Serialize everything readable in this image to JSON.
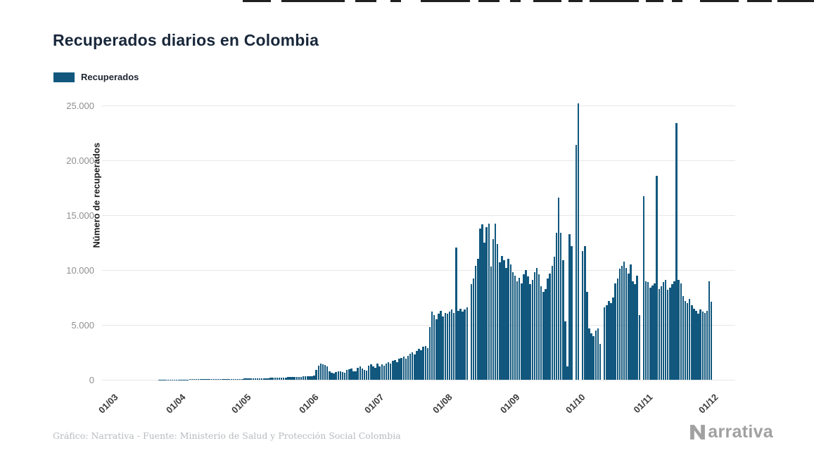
{
  "header": {
    "title": "Recuperados diarios en Colombia"
  },
  "legend": {
    "label": "Recuperados"
  },
  "axes": {
    "y_label": "Número de recuperados"
  },
  "footer": {
    "credit": "Gráfico: Narrativa - Fuente: Ministerio de Salud y Protección Social Colombia",
    "brand": "Narrativa",
    "brand_rest": "arrativa"
  },
  "colors": {
    "bar": "#12587e",
    "title": "#18273a",
    "grid": "#e7e7e7",
    "y_tick": "#8f8f8f",
    "x_tick": "#3a3a3a"
  },
  "chart_data": {
    "type": "bar",
    "title": "Recuperados diarios en Colombia",
    "series_name": "Recuperados",
    "xlabel": "",
    "ylabel": "Número de recuperados",
    "ylim": [
      0,
      25000
    ],
    "grid": true,
    "legend_position": "top-left",
    "y_ticks": [
      {
        "value": 0,
        "label": "0"
      },
      {
        "value": 5000,
        "label": "5.000"
      },
      {
        "value": 10000,
        "label": "10.000"
      },
      {
        "value": 15000,
        "label": "15.000"
      },
      {
        "value": 20000,
        "label": "20.000"
      },
      {
        "value": 25000,
        "label": "25.000"
      }
    ],
    "x_ticks": [
      {
        "day": 0,
        "label": "01/03"
      },
      {
        "day": 31,
        "label": "01/04"
      },
      {
        "day": 61,
        "label": "01/05"
      },
      {
        "day": 92,
        "label": "01/06"
      },
      {
        "day": 122,
        "label": "01/07"
      },
      {
        "day": 153,
        "label": "01/08"
      },
      {
        "day": 184,
        "label": "01/09"
      },
      {
        "day": 214,
        "label": "01/10"
      },
      {
        "day": 245,
        "label": "01/11"
      },
      {
        "day": 275,
        "label": "01/12"
      }
    ],
    "start_label": "01/03",
    "end_label": "01/12",
    "values": [
      0,
      0,
      0,
      0,
      0,
      0,
      0,
      0,
      0,
      0,
      0,
      0,
      0,
      0,
      1,
      1,
      2,
      3,
      3,
      4,
      5,
      6,
      8,
      8,
      10,
      12,
      14,
      16,
      18,
      20,
      22,
      25,
      28,
      30,
      32,
      35,
      38,
      40,
      42,
      45,
      48,
      50,
      52,
      55,
      58,
      60,
      62,
      65,
      68,
      70,
      72,
      75,
      78,
      80,
      82,
      85,
      88,
      90,
      92,
      95,
      98,
      100,
      105,
      110,
      118,
      125,
      130,
      140,
      150,
      145,
      155,
      160,
      170,
      180,
      175,
      190,
      200,
      210,
      205,
      220,
      230,
      240,
      250,
      245,
      260,
      270,
      280,
      290,
      300,
      310,
      320,
      330,
      400,
      900,
      1300,
      1450,
      1400,
      1350,
      1200,
      800,
      650,
      600,
      700,
      750,
      800,
      700,
      650,
      900,
      950,
      1000,
      800,
      750,
      1100,
      1200,
      1000,
      900,
      850,
      1300,
      1400,
      1200,
      1100,
      1500,
      1200,
      1400,
      1300,
      1500,
      1600,
      1500,
      1700,
      1800,
      1600,
      1900,
      2000,
      2100,
      1900,
      2200,
      2400,
      2500,
      2300,
      2600,
      2800,
      2700,
      3000,
      3100,
      2900,
      4800,
      6200,
      5900,
      5500,
      6000,
      6300,
      5800,
      6100,
      6000,
      6200,
      6400,
      6100,
      12046,
      6300,
      6500,
      6200,
      6400,
      6600,
      0,
      8700,
      9200,
      10400,
      11000,
      13800,
      14150,
      12500,
      13900,
      14200,
      10300,
      12800,
      14250,
      12400,
      10700,
      11300,
      10900,
      10200,
      11000,
      10500,
      9800,
      9500,
      9000,
      9300,
      8800,
      9600,
      10000,
      9400,
      8700,
      9100,
      9800,
      10200,
      9600,
      8500,
      8000,
      8300,
      9200,
      9700,
      10400,
      11200,
      13400,
      16600,
      13380,
      10900,
      5300,
      1200,
      13300,
      12200,
      0,
      21400,
      25190,
      0,
      11700,
      12200,
      8000,
      4700,
      4200,
      4000,
      4500,
      4700,
      3300,
      0,
      6600,
      6800,
      7200,
      7000,
      7500,
      8800,
      9200,
      10100,
      10400,
      10800,
      10200,
      9700,
      10500,
      9000,
      8700,
      9500,
      5900,
      0,
      16700,
      9000,
      8900,
      8400,
      8600,
      8800,
      18600,
      8300,
      8500,
      8900,
      9100,
      8200,
      8400,
      8700,
      9000,
      23400,
      9100,
      8800,
      7600,
      7200,
      7000,
      7400,
      6800,
      6500,
      6300,
      6000,
      6400,
      6200,
      6100,
      6300,
      9000,
      7100
    ]
  }
}
